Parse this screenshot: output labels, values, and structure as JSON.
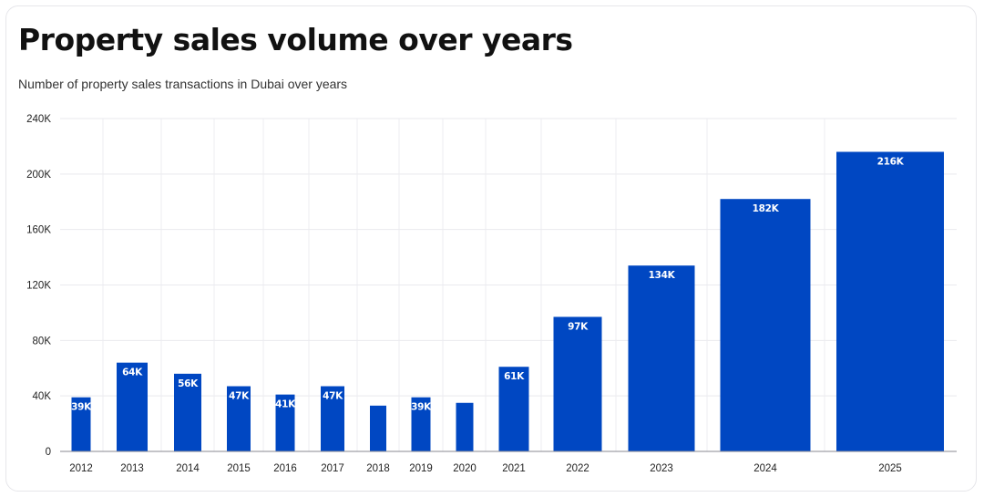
{
  "title": "Property sales volume over years",
  "subtitle": "Number of property sales transactions in Dubai over years",
  "chart_data": {
    "type": "bar",
    "title": "Property sales volume over years",
    "subtitle": "Number of property sales transactions in Dubai over years",
    "xlabel": "",
    "ylabel": "",
    "ylim": [
      0,
      240000
    ],
    "yticks": [
      0,
      40000,
      80000,
      120000,
      160000,
      200000,
      240000
    ],
    "ytick_labels": [
      "0",
      "40K",
      "80K",
      "120K",
      "160K",
      "200K",
      "240K"
    ],
    "grid": true,
    "legend": "none",
    "categories": [
      "2012",
      "2013",
      "2014",
      "2015",
      "2016",
      "2017",
      "2018",
      "2019",
      "2020",
      "2021",
      "2022",
      "2023",
      "2024",
      "2025"
    ],
    "values": [
      39000,
      64000,
      56000,
      47000,
      41000,
      47000,
      33000,
      39000,
      35000,
      61000,
      97000,
      134000,
      182000,
      216000
    ],
    "data_labels": [
      "39K",
      "64K",
      "56K",
      "47K",
      "41K",
      "47K",
      "",
      "39K",
      "",
      "61K",
      "97K",
      "134K",
      "182K",
      "216K"
    ],
    "bar_color": "#0047c2"
  }
}
